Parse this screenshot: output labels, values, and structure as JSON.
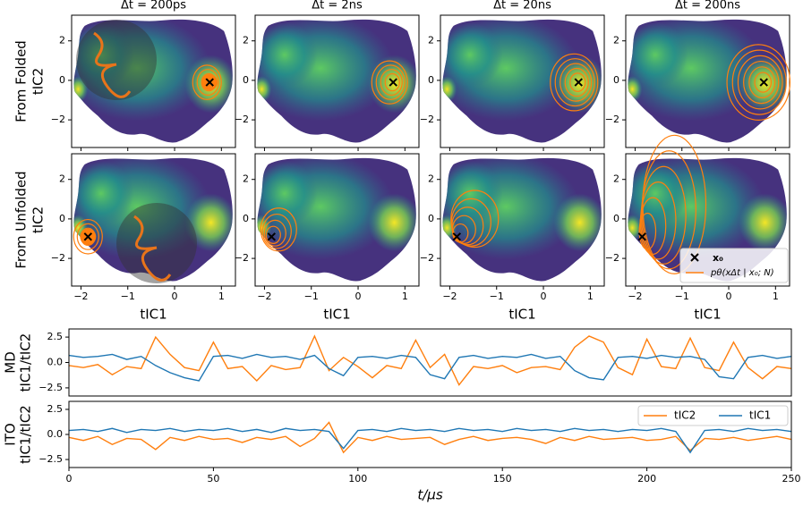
{
  "chart_data": [
    {
      "type": "heatmap",
      "col_titles": [
        "Δt = 200ps",
        "Δt = 2ns",
        "Δt = 20ns",
        "Δt = 200ns"
      ],
      "row_labels": [
        "From Folded",
        "From Unfolded"
      ],
      "ylabel": "tIC2",
      "xlabel": "tIC1",
      "xlim": [
        -2.2,
        1.3
      ],
      "xticks": [
        {
          "value": -2,
          "label": "−2"
        },
        {
          "value": -1,
          "label": "−1"
        },
        0,
        1
      ],
      "ylim": [
        -3.4,
        3.3
      ],
      "yticks": [
        {
          "value": -2,
          "label": "−2"
        },
        0,
        2
      ],
      "start_points": [
        {
          "x": 0.75,
          "y": -0.1
        },
        {
          "x": -1.85,
          "y": -0.9
        }
      ],
      "marker_color": "#000000",
      "contour_color": "#ff7f0e",
      "legend": [
        "x₀",
        "pθ(xΔt | x₀; N)"
      ]
    },
    {
      "type": "line",
      "ylabel": [
        "MD",
        "tIC1/tIC2"
      ],
      "x": [
        0,
        5,
        10,
        15,
        20,
        25,
        30,
        35,
        40,
        45,
        50,
        55,
        60,
        65,
        70,
        75,
        80,
        85,
        90,
        95,
        100,
        105,
        110,
        115,
        120,
        125,
        130,
        135,
        140,
        145,
        150,
        155,
        160,
        165,
        170,
        175,
        180,
        185,
        190,
        195,
        200,
        205,
        210,
        215,
        220,
        225,
        230,
        235,
        240,
        245,
        250
      ],
      "xlim": [
        0,
        250
      ],
      "ylim": [
        -3.3,
        3.3
      ],
      "yticks": [
        {
          "value": -2.5,
          "label": "−2.5"
        },
        {
          "value": 0,
          "label": "0.0"
        },
        2.5
      ],
      "series": [
        {
          "color": "#ff7f0e",
          "values": [
            -0.3,
            -0.5,
            -0.2,
            -1.2,
            -0.4,
            -0.6,
            2.5,
            0.8,
            -0.5,
            -0.8,
            2.0,
            -0.6,
            -0.4,
            -1.8,
            -0.3,
            -0.7,
            -0.5,
            2.6,
            -0.8,
            0.5,
            -0.4,
            -1.5,
            -0.3,
            -0.6,
            2.2,
            -0.5,
            0.8,
            -2.2,
            -0.4,
            -0.6,
            -0.3,
            -1.0,
            -0.5,
            -0.4,
            -0.7,
            1.5,
            2.6,
            2.0,
            -0.5,
            -1.2,
            2.3,
            -0.4,
            -0.6,
            2.4,
            -0.5,
            -0.8,
            2.0,
            -0.5,
            -1.6,
            -0.4,
            -0.6
          ]
        },
        {
          "color": "#1f77b4",
          "values": [
            0.7,
            0.5,
            0.6,
            0.8,
            0.3,
            0.6,
            -0.3,
            -1.0,
            -1.5,
            -1.8,
            0.6,
            0.7,
            0.4,
            0.8,
            0.5,
            0.6,
            0.3,
            0.7,
            -0.6,
            -1.3,
            0.5,
            0.6,
            0.4,
            0.7,
            0.5,
            -1.2,
            -1.6,
            0.5,
            0.7,
            0.4,
            0.6,
            0.5,
            0.8,
            0.4,
            0.6,
            -0.8,
            -1.5,
            -1.7,
            0.5,
            0.6,
            0.4,
            0.7,
            0.5,
            0.6,
            0.3,
            -1.4,
            -1.6,
            0.5,
            0.7,
            0.4,
            0.6
          ]
        }
      ]
    },
    {
      "type": "line",
      "ylabel": [
        "ITO",
        "tIC1/tIC2"
      ],
      "xlabel": "t/μs",
      "x": [
        0,
        5,
        10,
        15,
        20,
        25,
        30,
        35,
        40,
        45,
        50,
        55,
        60,
        65,
        70,
        75,
        80,
        85,
        90,
        95,
        100,
        105,
        110,
        115,
        120,
        125,
        130,
        135,
        140,
        145,
        150,
        155,
        160,
        165,
        170,
        175,
        180,
        185,
        190,
        195,
        200,
        205,
        210,
        215,
        220,
        225,
        230,
        235,
        240,
        245,
        250
      ],
      "xlim": [
        0,
        250
      ],
      "xticks": [
        0,
        50,
        100,
        150,
        200,
        250
      ],
      "ylim": [
        -3.3,
        3.3
      ],
      "yticks": [
        {
          "value": -2.5,
          "label": "−2.5"
        },
        {
          "value": 0,
          "label": "0.0"
        },
        2.5
      ],
      "legend": true,
      "series": [
        {
          "name": "tIC2",
          "color": "#ff7f0e",
          "values": [
            -0.3,
            -0.6,
            -0.2,
            -1.0,
            -0.4,
            -0.5,
            -1.5,
            -0.3,
            -0.6,
            -0.2,
            -0.5,
            -0.4,
            -0.8,
            -0.3,
            -0.5,
            -0.2,
            -1.2,
            -0.4,
            1.2,
            -1.8,
            -0.3,
            -0.6,
            -0.2,
            -0.5,
            -0.4,
            -0.3,
            -1.0,
            -0.5,
            -0.2,
            -0.6,
            -0.4,
            -0.3,
            -0.5,
            -0.9,
            -0.3,
            -0.6,
            -0.2,
            -0.5,
            -0.4,
            -0.3,
            -0.6,
            -0.5,
            -0.2,
            -1.6,
            -0.4,
            -0.5,
            -0.3,
            -0.6,
            -0.4,
            -0.2,
            -0.5
          ]
        },
        {
          "name": "tIC1",
          "color": "#1f77b4",
          "values": [
            0.4,
            0.5,
            0.3,
            0.6,
            0.2,
            0.5,
            0.4,
            0.6,
            0.3,
            0.5,
            0.4,
            0.6,
            0.3,
            0.5,
            0.2,
            0.6,
            0.4,
            0.5,
            0.3,
            -1.4,
            0.4,
            0.5,
            0.3,
            0.6,
            0.4,
            0.5,
            0.3,
            0.6,
            0.4,
            0.5,
            0.3,
            0.6,
            0.4,
            0.5,
            0.3,
            0.6,
            0.4,
            0.5,
            0.3,
            0.5,
            0.4,
            0.6,
            0.3,
            -1.8,
            0.4,
            0.5,
            0.3,
            0.6,
            0.4,
            0.5,
            0.3
          ]
        }
      ]
    }
  ]
}
